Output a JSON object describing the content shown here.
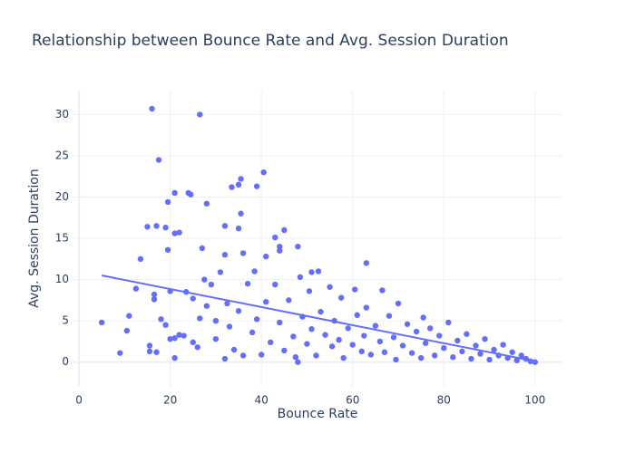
{
  "chart_data": {
    "type": "scatter",
    "title": "Relationship between Bounce Rate and Avg. Session Duration",
    "x_label": "Bounce Rate",
    "y_label": "Avg. Session Duration",
    "xlim": [
      -1.4,
      106
    ],
    "ylim": [
      -3,
      32.9
    ],
    "xticks": [
      0,
      20,
      40,
      60,
      80,
      100
    ],
    "yticks": [
      0,
      5,
      10,
      15,
      20,
      25,
      30
    ],
    "grid": true,
    "series": [
      {
        "mode": "markers",
        "color": "#636efa",
        "x": [
          16,
          26.5,
          17.5,
          40.5,
          35.5,
          35,
          33.5,
          39,
          21,
          24,
          24.5,
          19.5,
          28,
          35.5,
          15,
          17,
          19,
          32,
          35,
          21,
          22,
          43,
          45,
          19.5,
          13.5,
          27,
          32,
          36,
          41,
          63,
          48,
          44,
          5,
          9,
          10.5,
          11,
          12.5,
          15.5,
          15.5,
          17,
          16.5,
          16.5,
          18,
          19,
          20,
          20,
          21,
          21,
          22,
          23,
          23.5,
          25,
          25,
          26,
          26.5,
          27.5,
          28,
          29,
          30,
          30,
          31,
          32,
          32.5,
          33,
          34,
          35,
          36,
          37,
          38,
          38.5,
          39,
          40,
          41,
          42,
          43,
          44,
          45,
          46,
          47,
          47.5,
          48,
          48.5,
          49,
          50,
          50.5,
          51,
          52,
          52.5,
          53,
          54,
          55,
          55.5,
          56,
          57,
          57.5,
          58,
          59,
          60,
          60.5,
          61,
          62,
          62.5,
          63,
          64,
          65,
          66,
          66.5,
          67,
          68,
          69,
          69.5,
          70,
          71,
          72,
          73,
          74,
          75,
          75.5,
          76,
          77,
          78,
          79,
          80,
          81,
          82,
          83,
          84,
          85,
          86,
          87,
          88,
          89,
          90,
          91,
          92,
          93,
          94,
          95,
          96,
          97,
          98,
          99,
          100,
          44,
          51
        ],
        "values": [
          30.7,
          30,
          24.5,
          23,
          22.2,
          21.5,
          21.2,
          21.3,
          20.5,
          20.5,
          20.3,
          19.4,
          19.2,
          18,
          16.4,
          16.5,
          16.3,
          16.5,
          16.2,
          15.6,
          15.7,
          15.1,
          16,
          13.6,
          12.5,
          13.8,
          13,
          13.2,
          12.8,
          12,
          14,
          13.5,
          4.8,
          1.1,
          3.8,
          5.6,
          8.9,
          1.3,
          2,
          1.2,
          7.6,
          8.2,
          5.2,
          4.5,
          2.8,
          8.6,
          2.9,
          0.5,
          3.3,
          3.2,
          8.5,
          7.7,
          2.4,
          1.8,
          5.3,
          10,
          6.8,
          9.4,
          2.8,
          5,
          10.9,
          0.4,
          7.1,
          4.3,
          1.5,
          6.2,
          0.8,
          9.5,
          3.6,
          11,
          5.2,
          0.9,
          7.3,
          2.4,
          9.4,
          4.8,
          1.4,
          7.5,
          3.1,
          0.6,
          0,
          10.3,
          5.5,
          2.2,
          8.6,
          4,
          0.8,
          11,
          6.1,
          3.3,
          9.1,
          1.9,
          5,
          2.7,
          7.8,
          0.5,
          4.1,
          2.1,
          8.8,
          5.7,
          1.3,
          3.2,
          6.6,
          0.9,
          4.4,
          2.5,
          8.7,
          1.2,
          5.6,
          3,
          0.3,
          7.1,
          2,
          4.6,
          1.1,
          3.7,
          0.5,
          5.4,
          2.3,
          4.1,
          0.8,
          3.2,
          1.7,
          4.8,
          0.6,
          2.6,
          1.3,
          3.4,
          0.4,
          2,
          1,
          2.8,
          0.3,
          1.5,
          0.8,
          2.1,
          0.5,
          1.2,
          0.2,
          0.8,
          0.4,
          0.1,
          0,
          14,
          10.9
        ]
      },
      {
        "mode": "lines",
        "color": "#636efa",
        "x": [
          5,
          100
        ],
        "values": [
          10.5,
          0.1
        ]
      }
    ]
  }
}
